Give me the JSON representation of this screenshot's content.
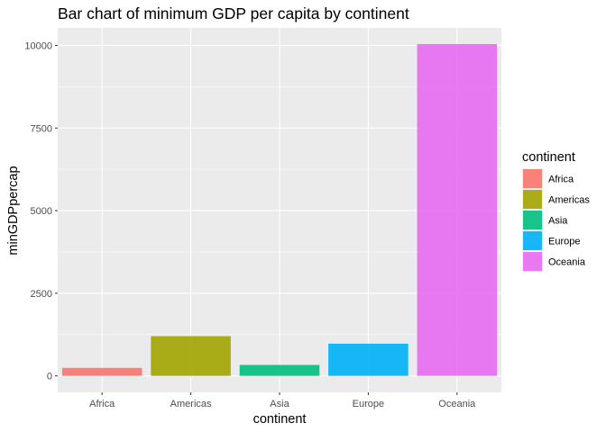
{
  "chart_data": {
    "type": "bar",
    "title": "Bar chart of minimum GDP per capita by continent",
    "xlabel": "continent",
    "ylabel": "minGDPpercap",
    "categories": [
      "Africa",
      "Americas",
      "Asia",
      "Europe",
      "Oceania"
    ],
    "values": [
      241,
      1202,
      331,
      974,
      10040
    ],
    "colors": [
      "#F8766D",
      "#A3A500",
      "#00BF7D",
      "#00B0F6",
      "#E76BF3"
    ],
    "ylim": [
      -500,
      10530
    ],
    "yticks": [
      0,
      2500,
      5000,
      7500,
      10000
    ],
    "ytick_labels": [
      "0",
      "2500",
      "5000",
      "7500",
      "10000"
    ],
    "grid": true,
    "legend": {
      "title": "continent",
      "position": "right",
      "items": [
        "Africa",
        "Americas",
        "Asia",
        "Europe",
        "Oceania"
      ]
    },
    "panel_background": "#EBEBEB",
    "grid_color": "#FFFFFF"
  }
}
